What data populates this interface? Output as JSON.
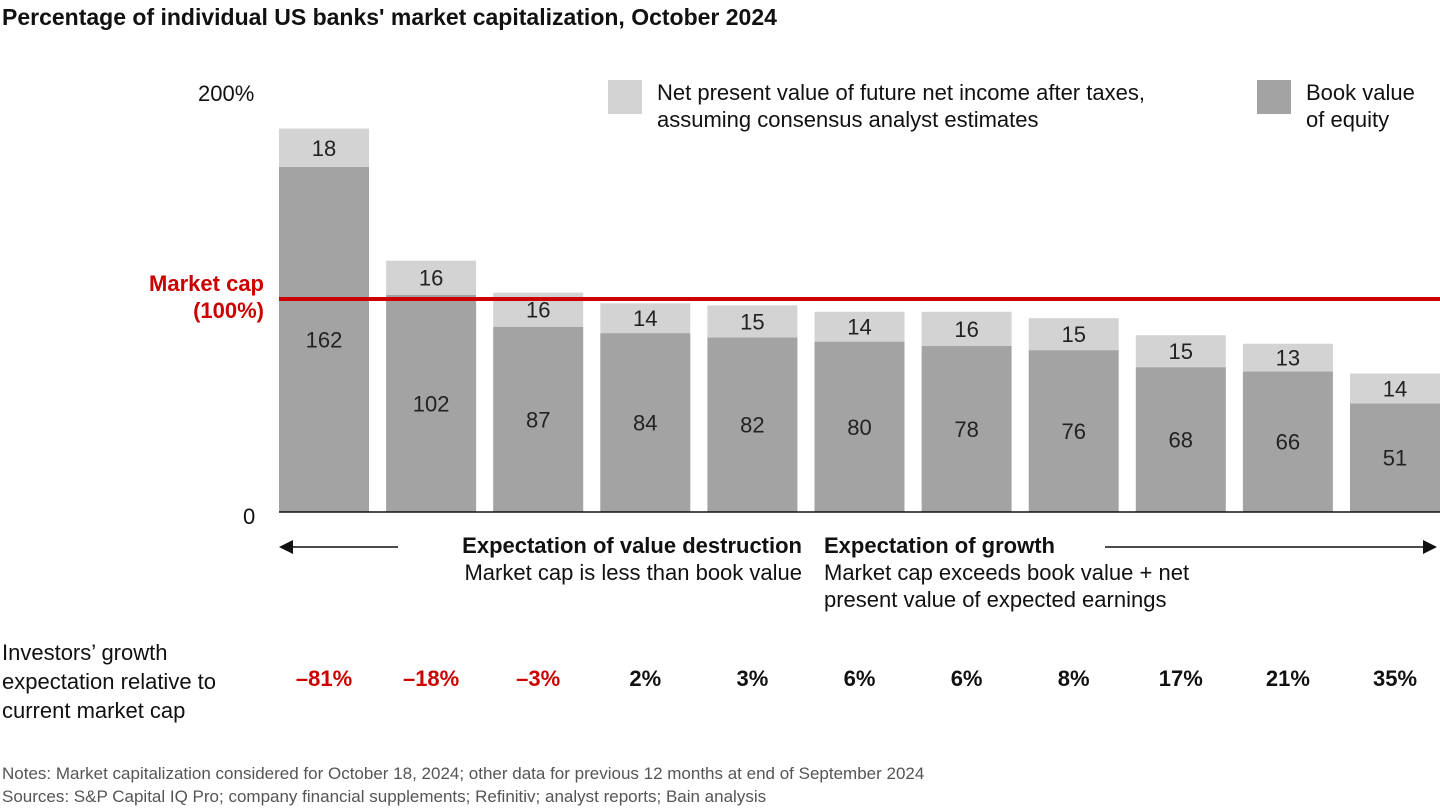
{
  "title": "Percentage of individual US banks' market capitalization, October 2024",
  "colors": {
    "book_value": "#a3a3a3",
    "npv": "#d3d3d3",
    "market_cap_line": "#cc0000",
    "negative": "#cc0000"
  },
  "chart_data": {
    "type": "bar",
    "stacked": true,
    "ylim": [
      0,
      200
    ],
    "y_ticks": [
      "0",
      "200%"
    ],
    "series": [
      {
        "name": "Book value of equity",
        "values": [
          162,
          102,
          87,
          84,
          82,
          80,
          78,
          76,
          68,
          66,
          51
        ]
      },
      {
        "name": "Net present value of future net income after taxes, assuming consensus analyst estimates",
        "values": [
          18,
          16,
          16,
          14,
          15,
          14,
          16,
          15,
          15,
          13,
          14
        ]
      }
    ],
    "reference_line": {
      "label_line1": "Market cap",
      "label_line2": "(100%)",
      "value": 100
    },
    "legend": {
      "npv_line1": "Net present value of future net income after taxes,",
      "npv_line2": "assuming consensus analyst estimates",
      "book_line1": "Book value",
      "book_line2": "of equity",
      "placement": "top-right"
    },
    "growth_expectation": {
      "label_line1": "Investors’ growth",
      "label_line2": "expectation relative to",
      "label_line3": "current market cap",
      "values": [
        "–81%",
        "–18%",
        "–3%",
        "2%",
        "3%",
        "6%",
        "6%",
        "8%",
        "17%",
        "21%",
        "35%"
      ]
    },
    "annotations": {
      "destruction_title": "Expectation of value destruction",
      "destruction_sub": "Market cap is less than book value",
      "growth_title": "Expectation of growth",
      "growth_sub_line1": "Market cap exceeds book value + net",
      "growth_sub_line2": "present value of expected earnings"
    }
  },
  "notes": "Notes: Market capitalization considered for October 18, 2024; other data for previous 12 months at end of September 2024",
  "sources": "Sources: S&P Capital IQ Pro; company financial supplements; Refinitiv; analyst reports; Bain analysis"
}
